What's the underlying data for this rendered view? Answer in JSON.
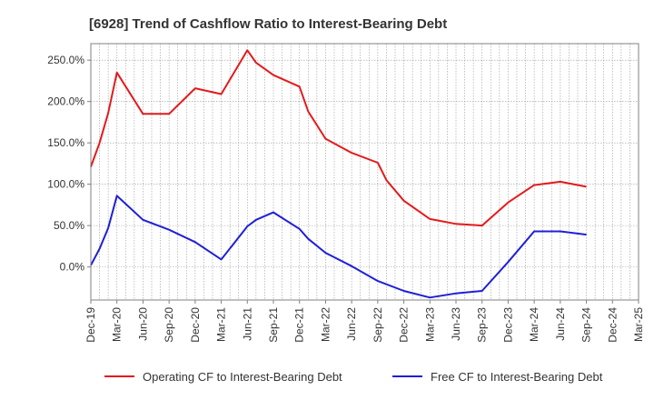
{
  "chart_data": {
    "type": "line",
    "title": "[6928]  Trend of Cashflow Ratio to Interest-Bearing Debt",
    "x": [
      "Dec-19",
      "Jan-20",
      "Feb-20",
      "Mar-20",
      "Apr-20",
      "May-20",
      "Jun-20",
      "Jul-20",
      "Aug-20",
      "Sep-20",
      "Oct-20",
      "Nov-20",
      "Dec-20",
      "Jan-21",
      "Feb-21",
      "Mar-21",
      "Apr-21",
      "May-21",
      "Jun-21",
      "Jul-21",
      "Aug-21",
      "Sep-21",
      "Oct-21",
      "Nov-21",
      "Dec-21",
      "Jan-22",
      "Feb-22",
      "Mar-22",
      "Apr-22",
      "May-22",
      "Jun-22",
      "Jul-22",
      "Aug-22",
      "Sep-22",
      "Oct-22",
      "Nov-22",
      "Dec-22",
      "Jan-23",
      "Feb-23",
      "Mar-23",
      "Apr-23",
      "May-23",
      "Jun-23",
      "Jul-23",
      "Aug-23",
      "Sep-23",
      "Oct-23",
      "Nov-23",
      "Dec-23",
      "Jan-24",
      "Feb-24",
      "Mar-24",
      "Apr-24",
      "May-24",
      "Jun-24",
      "Jul-24",
      "Aug-24",
      "Sep-24",
      "Oct-24",
      "Nov-24",
      "Dec-24",
      "Jan-25",
      "Feb-25",
      "Mar-25"
    ],
    "tick_labels": [
      "Dec-19",
      "Mar-20",
      "Jun-20",
      "Sep-20",
      "Dec-20",
      "Mar-21",
      "Jun-21",
      "Sep-21",
      "Dec-21",
      "Mar-22",
      "Jun-22",
      "Sep-22",
      "Dec-22",
      "Mar-23",
      "Jun-23",
      "Sep-23",
      "Dec-23",
      "Mar-24",
      "Jun-24",
      "Sep-24",
      "Dec-24",
      "Mar-25"
    ],
    "series": [
      {
        "name": "Operating CF to Interest-Bearing Debt",
        "color": "#e31a1c",
        "points": [
          [
            "Dec-19",
            121
          ],
          [
            "Jan-20",
            150
          ],
          [
            "Feb-20",
            186
          ],
          [
            "Mar-20",
            235
          ],
          [
            "Jun-20",
            185
          ],
          [
            "Sep-20",
            185
          ],
          [
            "Dec-20",
            216
          ],
          [
            "Mar-21",
            209
          ],
          [
            "Jun-21",
            262
          ],
          [
            "Jul-21",
            247
          ],
          [
            "Sep-21",
            232
          ],
          [
            "Dec-21",
            218
          ],
          [
            "Jan-22",
            188
          ],
          [
            "Mar-22",
            155
          ],
          [
            "Jun-22",
            138
          ],
          [
            "Sep-22",
            126
          ],
          [
            "Oct-22",
            105
          ],
          [
            "Dec-22",
            80
          ],
          [
            "Mar-23",
            58
          ],
          [
            "Jun-23",
            52
          ],
          [
            "Sep-23",
            50
          ],
          [
            "Dec-23",
            78
          ],
          [
            "Mar-24",
            99
          ],
          [
            "Jun-24",
            103
          ],
          [
            "Sep-24",
            97
          ]
        ]
      },
      {
        "name": "Free CF to Interest-Bearing Debt",
        "color": "#1f1fd6",
        "points": [
          [
            "Dec-19",
            2
          ],
          [
            "Jan-20",
            22
          ],
          [
            "Feb-20",
            47
          ],
          [
            "Mar-20",
            86
          ],
          [
            "Jun-20",
            57
          ],
          [
            "Sep-20",
            45
          ],
          [
            "Dec-20",
            30
          ],
          [
            "Mar-21",
            9
          ],
          [
            "Jun-21",
            49
          ],
          [
            "Jul-21",
            57
          ],
          [
            "Sep-21",
            66
          ],
          [
            "Dec-21",
            46
          ],
          [
            "Jan-22",
            34
          ],
          [
            "Mar-22",
            17
          ],
          [
            "Jun-22",
            1
          ],
          [
            "Sep-22",
            -17
          ],
          [
            "Dec-22",
            -29
          ],
          [
            "Mar-23",
            -37
          ],
          [
            "Jun-23",
            -32
          ],
          [
            "Sep-23",
            -29
          ],
          [
            "Dec-23",
            6
          ],
          [
            "Mar-24",
            43
          ],
          [
            "Jun-24",
            43
          ],
          [
            "Sep-24",
            39
          ]
        ]
      }
    ],
    "yticks": [
      0,
      50,
      100,
      150,
      200,
      250
    ],
    "ytick_labels": [
      "0.0%",
      "50.0%",
      "100.0%",
      "150.0%",
      "200.0%",
      "250.0%"
    ],
    "ylim": [
      -40,
      270
    ],
    "grid": true,
    "legend_placement": "bottom"
  }
}
